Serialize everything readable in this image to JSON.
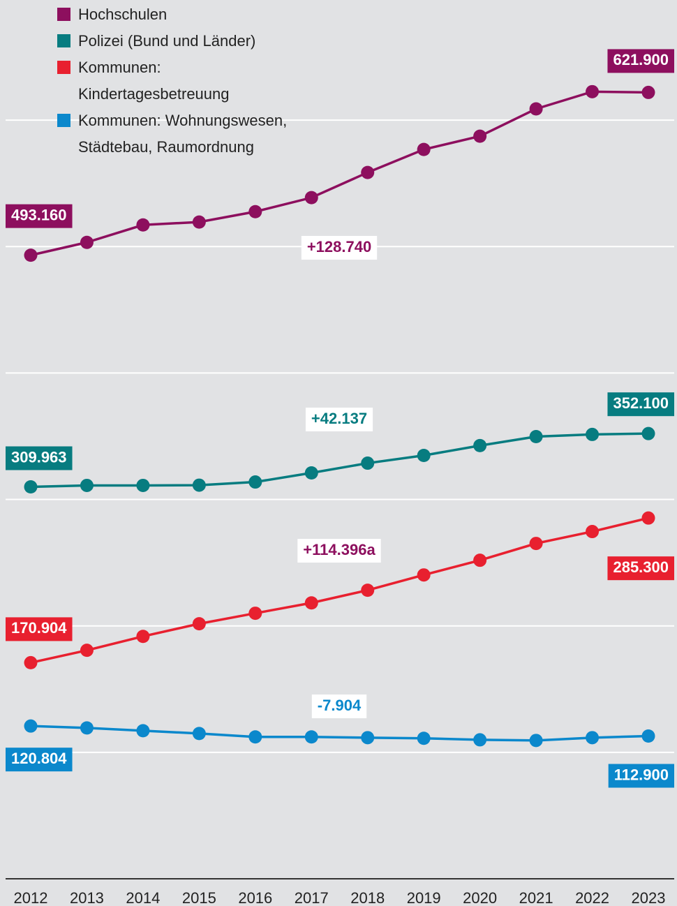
{
  "chart_data": {
    "type": "line",
    "categories": [
      "2012",
      "2013",
      "2014",
      "2015",
      "2016",
      "2017",
      "2018",
      "2019",
      "2020",
      "2021",
      "2022",
      "2023"
    ],
    "ylim": [
      0,
      695000
    ],
    "yticks": [
      0,
      100000,
      200000,
      300000,
      400000,
      500000,
      600000
    ],
    "grid": true,
    "series": [
      {
        "name": "Hochschulen",
        "color": "#8d0f5e",
        "values": [
          493160,
          503300,
          517100,
          519400,
          527600,
          538700,
          558600,
          576800,
          587300,
          608900,
          622500,
          621900
        ],
        "value_labels": [
          "493.160",
          null,
          null,
          null,
          null,
          null,
          null,
          null,
          null,
          null,
          null,
          "621.900"
        ]
      },
      {
        "name": "Polizei (Bund und Länder)",
        "color": "#077c80",
        "values": [
          309963,
          311100,
          311100,
          311300,
          313800,
          321000,
          328700,
          334800,
          342600,
          349700,
          351400,
          352100
        ],
        "value_labels": [
          "309.963",
          null,
          null,
          null,
          null,
          null,
          null,
          null,
          null,
          null,
          null,
          "352.100"
        ]
      },
      {
        "name": "Kommunen: Kindertagesbetreuung",
        "color": "#e8202f",
        "values": [
          170904,
          180700,
          191700,
          201700,
          210000,
          218200,
          228200,
          240300,
          251900,
          265200,
          274600,
          285300
        ],
        "value_labels": [
          "170.904",
          null,
          null,
          null,
          null,
          null,
          null,
          null,
          null,
          null,
          null,
          "285.300"
        ]
      },
      {
        "name": "Kommunen: Wohnungswesen, Städtebau, Raumordnung",
        "color": "#0b88cc",
        "values": [
          120804,
          119300,
          117100,
          114900,
          112200,
          112200,
          111600,
          111100,
          109900,
          109400,
          111600,
          112900
        ],
        "value_labels": [
          "120.804",
          null,
          null,
          null,
          null,
          null,
          null,
          null,
          null,
          null,
          null,
          "112.900"
        ]
      }
    ],
    "annotations": [
      {
        "text": "+128.740",
        "color": "#8d0f5e"
      },
      {
        "text": "+42.137",
        "color": "#077c80"
      },
      {
        "text": "+114.396a",
        "color": "#8d0f5e"
      },
      {
        "text": "-7.904",
        "color": "#0b88cc"
      }
    ]
  }
}
